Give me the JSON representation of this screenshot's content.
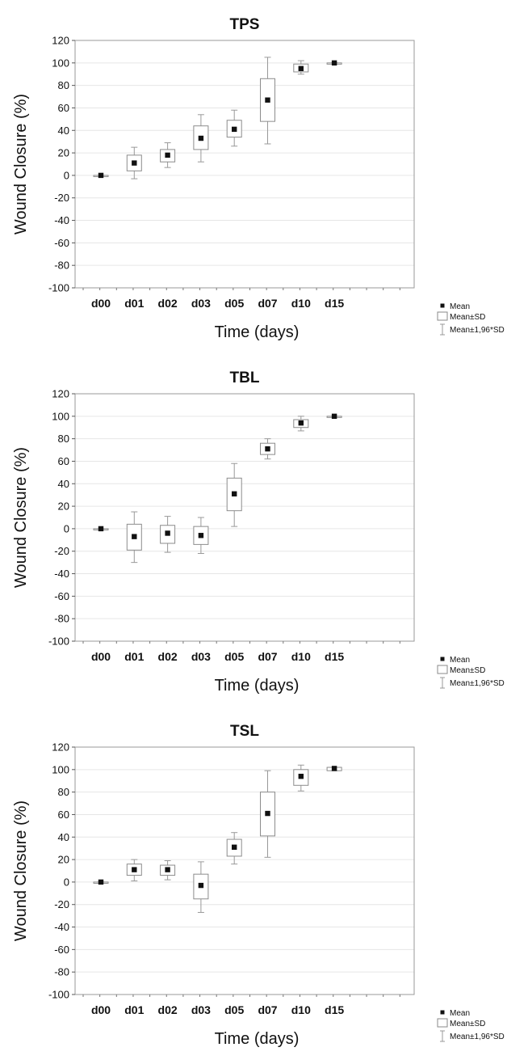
{
  "chart_data": [
    {
      "type": "box",
      "title": "TPS",
      "xlabel": "Time (days)",
      "ylabel": "Wound Closure (%)",
      "ylim": [
        -100,
        120
      ],
      "yticks": [
        "120",
        "100",
        "80",
        "60",
        "40",
        "20",
        "0",
        "-20",
        "-40",
        "-60",
        "-80",
        "-100"
      ],
      "categories": [
        "d00",
        "d01",
        "d02",
        "d03",
        "d05",
        "d07",
        "d10",
        "d15"
      ],
      "mean": [
        0,
        11,
        18,
        33,
        41,
        67,
        95,
        100
      ],
      "sd_low": [
        0,
        4,
        12,
        23,
        34,
        48,
        92,
        100
      ],
      "sd_high": [
        0,
        18,
        23,
        44,
        49,
        86,
        99,
        100
      ],
      "whisker_low": [
        0,
        -3,
        7,
        12,
        26,
        28,
        90,
        100
      ],
      "whisker_high": [
        0,
        25,
        29,
        54,
        58,
        105,
        102,
        100
      ],
      "grid": true,
      "legend": [
        "Mean",
        "Mean±SD",
        "Mean±1,96*SD"
      ],
      "legend_position": "bottom-right"
    },
    {
      "type": "box",
      "title": "TBL",
      "xlabel": "Time (days)",
      "ylabel": "Wound Closure (%)",
      "ylim": [
        -100,
        120
      ],
      "yticks": [
        "120",
        "100",
        "80",
        "60",
        "40",
        "20",
        "0",
        "-20",
        "-40",
        "-60",
        "-80",
        "-100"
      ],
      "categories": [
        "d00",
        "d01",
        "d02",
        "d03",
        "d05",
        "d07",
        "d10",
        "d15"
      ],
      "mean": [
        0,
        -7,
        -4,
        -6,
        31,
        71,
        94,
        100
      ],
      "sd_low": [
        0,
        -19,
        -13,
        -14,
        16,
        66,
        90,
        100
      ],
      "sd_high": [
        0,
        4,
        3,
        2,
        45,
        76,
        97,
        100
      ],
      "whisker_low": [
        0,
        -30,
        -21,
        -22,
        2,
        62,
        87,
        100
      ],
      "whisker_high": [
        0,
        15,
        11,
        10,
        58,
        80,
        100,
        100
      ],
      "grid": true,
      "legend": [
        "Mean",
        "Mean±SD",
        "Mean±1,96*SD"
      ],
      "legend_position": "bottom-right"
    },
    {
      "type": "box",
      "title": "TSL",
      "xlabel": "Time (days)",
      "ylabel": "Wound Closure (%)",
      "ylim": [
        -100,
        120
      ],
      "yticks": [
        "120",
        "100",
        "80",
        "60",
        "40",
        "20",
        "0",
        "-20",
        "-40",
        "-60",
        "-80",
        "-100"
      ],
      "categories": [
        "d00",
        "d01",
        "d02",
        "d03",
        "d05",
        "d07",
        "d10",
        "d15"
      ],
      "mean": [
        0,
        11,
        11,
        -3,
        31,
        61,
        94,
        101
      ],
      "sd_low": [
        0,
        6,
        6,
        -15,
        23,
        41,
        86,
        99
      ],
      "sd_high": [
        0,
        16,
        15,
        7,
        38,
        80,
        100,
        102
      ],
      "whisker_low": [
        0,
        1,
        2,
        -27,
        16,
        22,
        81,
        99
      ],
      "whisker_high": [
        0,
        20,
        19,
        18,
        44,
        99,
        104,
        102
      ],
      "grid": true,
      "legend": [
        "Mean",
        "Mean±SD",
        "Mean±1,96*SD"
      ],
      "legend_position": "bottom-right"
    }
  ]
}
